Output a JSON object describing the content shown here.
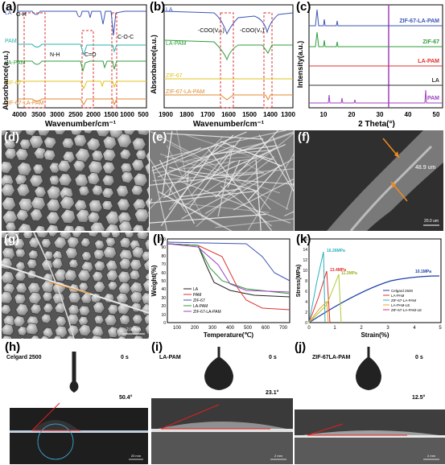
{
  "figure": {
    "panel_labels": [
      "(a)",
      "(b)",
      "(c)",
      "(d)",
      "(e)",
      "(f)",
      "(g)",
      "(h)",
      "(i)",
      "(j)",
      "(k)",
      "(l)"
    ]
  },
  "panel_a": {
    "ylabel": "Absorbance(a.u.)",
    "xlabel": "Wavenumber/cm⁻¹",
    "xticks": [
      "4000",
      "3500",
      "3000",
      "2500",
      "2000",
      "1500",
      "1000",
      "500"
    ],
    "curves": [
      {
        "name": "LA",
        "color": "#3b55b5"
      },
      {
        "name": "PAM",
        "color": "#2ab0b0"
      },
      {
        "name": "LA-PAM",
        "color": "#2e9c3a"
      },
      {
        "name": "ZIF-67",
        "color": "#e3c21a"
      },
      {
        "name": "ZIF-67-LA-PAM",
        "color": "#e08a2e"
      }
    ],
    "annotations": [
      "O-H",
      "N-H",
      "C=O",
      "C-O-C"
    ]
  },
  "panel_b": {
    "ylabel": "Absorbance(a.u.)",
    "xlabel": "Wavenumber/cm⁻¹",
    "xticks": [
      "1900",
      "1800",
      "1700",
      "1600",
      "1500",
      "1400",
      "1300"
    ],
    "curves": [
      {
        "name": "LA",
        "color": "#3b55b5"
      },
      {
        "name": "LA-PAM",
        "color": "#2e9c3a"
      },
      {
        "name": "ZIF-67",
        "color": "#e3c21a"
      },
      {
        "name": "ZIF-67-LA-PAM",
        "color": "#e08a2e"
      }
    ],
    "annotations": [
      "-COO(Vₐₛ)",
      "-COO(Vₛ)"
    ]
  },
  "panel_c": {
    "ylabel": "Intensity(a.u.)",
    "xlabel": "2 Theta(°)",
    "xticks": [
      "10",
      "20",
      "30",
      "40",
      "50"
    ],
    "curves": [
      {
        "name": "ZIF-67-LA-PAM",
        "color": "#3b55b5"
      },
      {
        "name": "ZIF-67",
        "color": "#2e9c3a"
      },
      {
        "name": "LA-PAM",
        "color": "#e03030"
      },
      {
        "name": "LA",
        "color": "#333333"
      },
      {
        "name": "PAM",
        "color": "#a040c0"
      }
    ]
  },
  "panel_f": {
    "scale_text": "48.9 um",
    "scale_bar": "20.0 um"
  },
  "panel_g": {
    "scale_bar": "2.00 um"
  },
  "panel_k": {
    "ylabel": "Weight(%)",
    "xlabel": "Temperature(℃)",
    "xticks": [
      "100",
      "200",
      "300",
      "400",
      "500",
      "600",
      "700"
    ],
    "yticks": [
      "0",
      "10",
      "20",
      "30",
      "40",
      "50",
      "60",
      "70",
      "80",
      "90",
      "100"
    ],
    "legend": [
      {
        "name": "LA",
        "color": "#222222"
      },
      {
        "name": "PAM",
        "color": "#e03030"
      },
      {
        "name": "ZIF-67",
        "color": "#3b55b5"
      },
      {
        "name": "LA-PAM",
        "color": "#2e9c3a"
      },
      {
        "name": "ZIF-67-LA-PAM",
        "color": "#a040c0"
      }
    ]
  },
  "panel_l": {
    "ylabel": "Stress(MPa)",
    "xlabel": "Strain(%)",
    "xticks": [
      "0",
      "1",
      "2",
      "3",
      "4",
      "5"
    ],
    "yticks": [
      "0",
      "2",
      "4",
      "6",
      "8",
      "10",
      "12",
      "14",
      "16"
    ],
    "values": [
      "16.26MPa",
      "13.4MPa",
      "11.3MPa",
      "10.1MPa"
    ],
    "legend": [
      {
        "name": "Celgard 2500",
        "color": "#1c3fa8"
      },
      {
        "name": "LA-PAM",
        "color": "#e03030"
      },
      {
        "name": "ZIF-67-LA-PAM",
        "color": "#2ab0c0"
      },
      {
        "name": "LA-PAM-LE",
        "color": "#f0a020"
      },
      {
        "name": "ZIF-67-LA-PAM-LE",
        "color": "#e0307a"
      }
    ]
  },
  "panel_h": {
    "title": "Celgard 2500",
    "time": "0 s",
    "angle": "50.4°",
    "scale": "20 mm"
  },
  "panel_i": {
    "title": "LA-PAM",
    "time": "0 s",
    "angle": "23.1°",
    "scale": "2 mm"
  },
  "panel_j": {
    "title": "ZIF-67LA-PAM",
    "time": "0 s",
    "angle": "12.5°",
    "scale": "2 mm"
  }
}
